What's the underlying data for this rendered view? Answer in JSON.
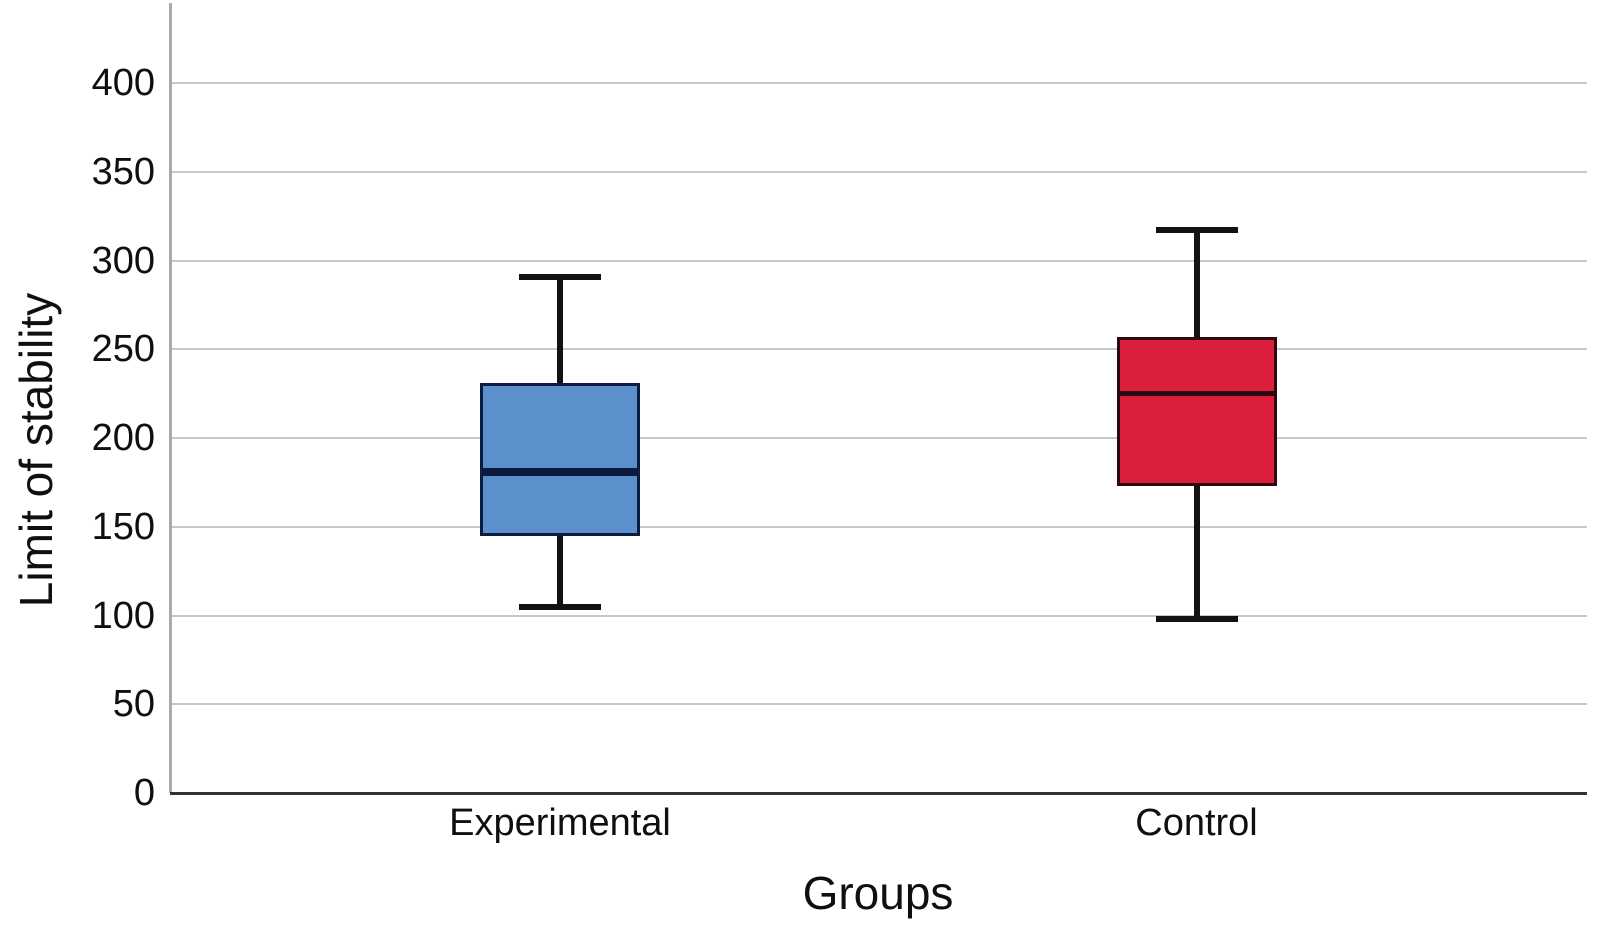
{
  "chart_data": {
    "type": "boxplot",
    "title": "",
    "xlabel": "Groups",
    "ylabel": "Limit of stability",
    "ylim": [
      0,
      444
    ],
    "yticks": [
      0,
      50,
      100,
      150,
      200,
      250,
      300,
      350,
      400
    ],
    "grid": "horizontal",
    "legend": "none",
    "categories": [
      "Experimental",
      "Control"
    ],
    "series": [
      {
        "name": "Experimental",
        "min": 105,
        "q1": 145,
        "median": 181,
        "q3": 231,
        "max": 291,
        "fill": "#5C90CD",
        "stroke": "#0D1B3E",
        "median_weight": 8
      },
      {
        "name": "Control",
        "min": 98,
        "q1": 173,
        "median": 225,
        "q3": 257,
        "max": 317,
        "fill": "#DB1E3C",
        "stroke": "#2B0812",
        "median_weight": 5
      }
    ],
    "colors": {
      "gridline": "#c8c8c8",
      "y_axis_line": "#ababab",
      "x_axis_line": "#333333",
      "whisker": "#121212",
      "text": "#0f0f0f",
      "background": "#ffffff"
    }
  }
}
